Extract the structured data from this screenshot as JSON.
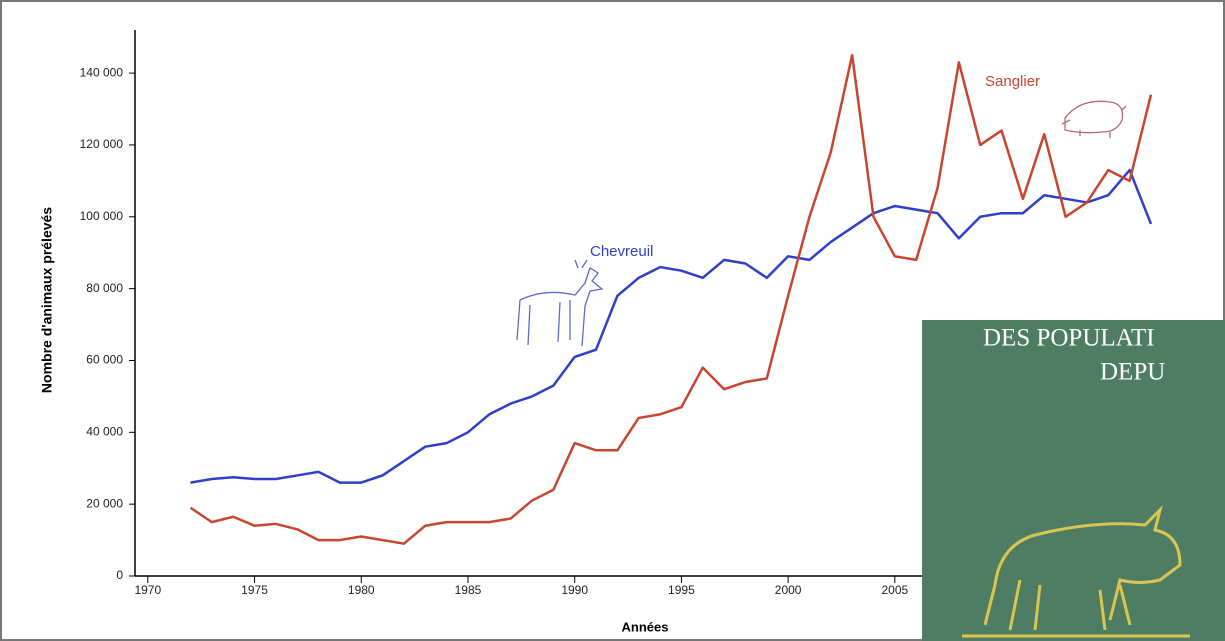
{
  "chart_data": {
    "type": "line",
    "x_label": "Années",
    "y_label": "Nombre d'animaux prélevés",
    "x": [
      1972,
      1973,
      1974,
      1975,
      1976,
      1977,
      1978,
      1979,
      1980,
      1981,
      1982,
      1983,
      1984,
      1985,
      1986,
      1987,
      1988,
      1989,
      1990,
      1991,
      1992,
      1993,
      1994,
      1995,
      1996,
      1997,
      1998,
      1999,
      2000,
      2001,
      2002,
      2003,
      2004,
      2005,
      2006,
      2007,
      2008,
      2009,
      2010,
      2011,
      2012,
      2013,
      2014,
      2015,
      2016,
      2017
    ],
    "series": [
      {
        "name": "Chevreuil",
        "color": "#2f3fc8",
        "values": [
          26000,
          27000,
          27500,
          27000,
          27000,
          28000,
          29000,
          26000,
          26000,
          28000,
          32000,
          36000,
          37000,
          40000,
          45000,
          48000,
          50000,
          53000,
          61000,
          63000,
          78000,
          83000,
          86000,
          85000,
          83000,
          88000,
          87000,
          83000,
          89000,
          88000,
          93000,
          97000,
          101000,
          103000,
          102000,
          101000,
          94000,
          100000,
          101000,
          101000,
          106000,
          105000,
          104000,
          106000,
          113000,
          98000
        ]
      },
      {
        "name": "Sanglier",
        "color": "#c8452e",
        "values": [
          19000,
          15000,
          16500,
          14000,
          14500,
          13000,
          10000,
          10000,
          11000,
          10000,
          9000,
          14000,
          15000,
          15000,
          15000,
          16000,
          21000,
          24000,
          37000,
          35000,
          35000,
          44000,
          45000,
          47000,
          58000,
          52000,
          54000,
          55000,
          78000,
          100000,
          118000,
          145000,
          100000,
          89000,
          88000,
          108000,
          143000,
          120000,
          124000,
          105000,
          123000,
          100000,
          104000,
          113000,
          110000,
          134000
        ]
      }
    ],
    "xlim": [
      1969.4,
      2020
    ],
    "xticks": [
      1970,
      1975,
      1980,
      1985,
      1990,
      1995,
      2000,
      2005
    ],
    "ylim": [
      0,
      152000
    ],
    "yticks": [
      0,
      {
        "value": 20000,
        "label": "20 000"
      },
      {
        "value": 40000,
        "label": "40 000"
      },
      {
        "value": 60000,
        "label": "60 000"
      },
      {
        "value": 80000,
        "label": "80 000"
      },
      {
        "value": 100000,
        "label": "100 000"
      },
      {
        "value": 120000,
        "label": "120 000"
      },
      {
        "value": 140000,
        "label": "140 000"
      }
    ]
  },
  "overlay": {
    "lines": [
      "DES POPULATI",
      "DEPU"
    ]
  }
}
